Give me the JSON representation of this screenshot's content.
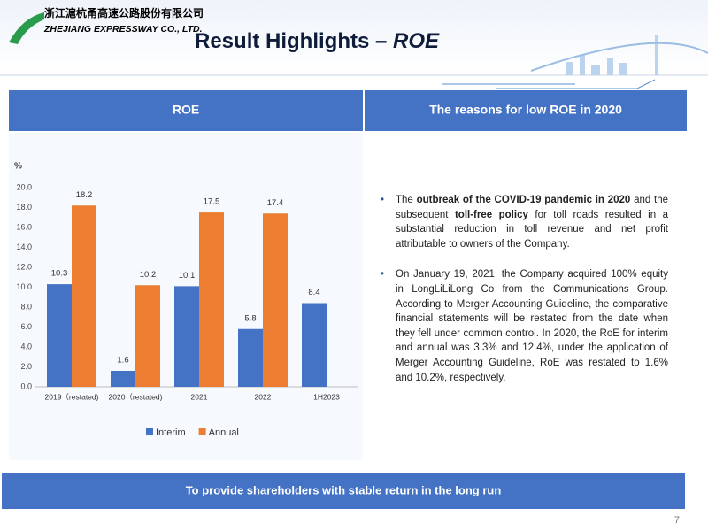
{
  "header": {
    "company_cn": "浙江滬杭甬高速公路股份有限公司",
    "company_en": "ZHEJIANG EXPRESSWAY CO., LTD.",
    "title": "Result Highlights – ",
    "title_emphasis": "ROE"
  },
  "left_heading": "ROE",
  "right_heading": "The reasons for low ROE in 2020",
  "bullets": [
    [
      {
        "text": "The "
      },
      {
        "text": "outbreak of the COVID-19 pandemic in 2020",
        "bold": true
      },
      {
        "text": " and the subsequent "
      },
      {
        "text": "toll-free policy",
        "bold": true
      },
      {
        "text": " for toll roads resulted in a substantial reduction in toll revenue and net profit attributable to owners of the Company."
      }
    ],
    [
      {
        "text": "On January 19, 2021, the Company acquired 100% equity in LongLiLiLong Co from the Communications Group. According to Merger Accounting Guideline, the comparative financial statements will be restated from the date when they fell under common control. In 2020, the RoE for interim and annual was 3.3% and 12.4%, under the application of Merger Accounting Guideline, RoE was restated to 1.6% and 10.2%, respectively."
      }
    ]
  ],
  "footer": "To provide shareholders with stable return in the long run",
  "page_number": "7",
  "chart_data": {
    "type": "bar",
    "y_label": "%",
    "categories": [
      "2019（restated)",
      "2020（restated)",
      "2021",
      "2022",
      "1H2023"
    ],
    "series": [
      {
        "name": "Interim",
        "color": "#4472c4",
        "values": [
          10.3,
          1.6,
          10.1,
          5.8,
          8.4
        ]
      },
      {
        "name": "Annual",
        "color": "#ed7d31",
        "values": [
          18.2,
          10.2,
          17.5,
          17.4,
          null
        ]
      }
    ],
    "ylim": [
      0,
      20
    ],
    "yticks": [
      {
        "value": 0,
        "label": "0.0"
      },
      {
        "value": 2,
        "label": "2.0"
      },
      {
        "value": 4,
        "label": "4.0"
      },
      {
        "value": 6,
        "label": "6.0"
      },
      {
        "value": 8,
        "label": "8.0"
      },
      {
        "value": 10,
        "label": "10.0"
      },
      {
        "value": 12,
        "label": "12.0"
      },
      {
        "value": 14,
        "label": "14.0"
      },
      {
        "value": 16,
        "label": "16.0"
      },
      {
        "value": 18,
        "label": "18.0"
      },
      {
        "value": 20,
        "label": "20.0"
      }
    ],
    "legend": "bottom"
  }
}
